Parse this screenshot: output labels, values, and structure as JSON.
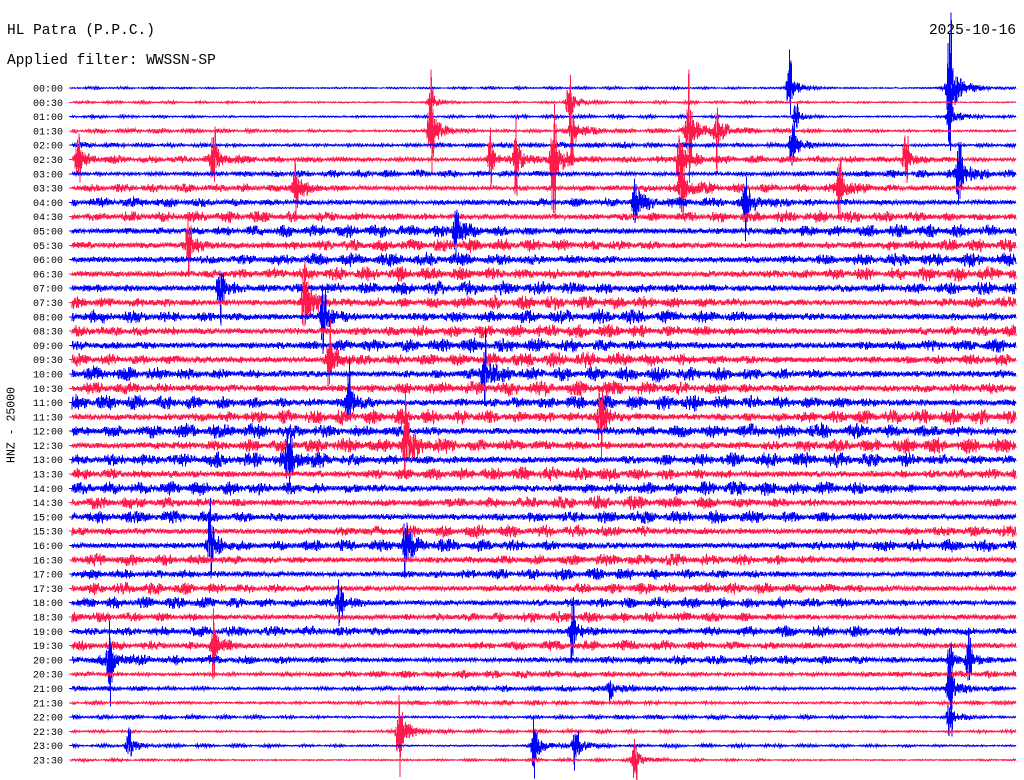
{
  "chart_data": {
    "type": "line",
    "title": "HL Patra (P.P.C.)",
    "subtitle": "Applied filter: WWSSN-SP",
    "date": "2025-10-16",
    "ylabel": "HNZ - 25000",
    "xlim": [
      0,
      30
    ],
    "grid": false,
    "colors": [
      "#0000ff",
      "#ff1a4b"
    ],
    "rows": [
      {
        "label": "00:00",
        "amplitude": 0.12
      },
      {
        "label": "00:30",
        "amplitude": 0.12
      },
      {
        "label": "01:00",
        "amplitude": 0.15
      },
      {
        "label": "01:30",
        "amplitude": 0.2
      },
      {
        "label": "02:00",
        "amplitude": 0.25
      },
      {
        "label": "02:30",
        "amplitude": 0.32
      },
      {
        "label": "03:00",
        "amplitude": 0.32
      },
      {
        "label": "03:30",
        "amplitude": 0.35
      },
      {
        "label": "04:00",
        "amplitude": 0.42
      },
      {
        "label": "04:30",
        "amplitude": 0.48
      },
      {
        "label": "05:00",
        "amplitude": 0.52
      },
      {
        "label": "05:30",
        "amplitude": 0.55
      },
      {
        "label": "06:00",
        "amplitude": 0.55
      },
      {
        "label": "06:30",
        "amplitude": 0.57
      },
      {
        "label": "07:00",
        "amplitude": 0.57
      },
      {
        "label": "07:30",
        "amplitude": 0.57
      },
      {
        "label": "08:00",
        "amplitude": 0.58
      },
      {
        "label": "08:30",
        "amplitude": 0.58
      },
      {
        "label": "09:00",
        "amplitude": 0.58
      },
      {
        "label": "09:30",
        "amplitude": 0.6
      },
      {
        "label": "10:00",
        "amplitude": 0.6
      },
      {
        "label": "10:30",
        "amplitude": 0.62
      },
      {
        "label": "11:00",
        "amplitude": 0.62
      },
      {
        "label": "11:30",
        "amplitude": 0.62
      },
      {
        "label": "12:00",
        "amplitude": 0.62
      },
      {
        "label": "12:30",
        "amplitude": 0.62
      },
      {
        "label": "13:00",
        "amplitude": 0.6
      },
      {
        "label": "13:30",
        "amplitude": 0.58
      },
      {
        "label": "14:00",
        "amplitude": 0.57
      },
      {
        "label": "14:30",
        "amplitude": 0.55
      },
      {
        "label": "15:00",
        "amplitude": 0.53
      },
      {
        "label": "15:30",
        "amplitude": 0.52
      },
      {
        "label": "16:00",
        "amplitude": 0.52
      },
      {
        "label": "16:30",
        "amplitude": 0.5
      },
      {
        "label": "17:00",
        "amplitude": 0.48
      },
      {
        "label": "17:30",
        "amplitude": 0.47
      },
      {
        "label": "18:00",
        "amplitude": 0.46
      },
      {
        "label": "18:30",
        "amplitude": 0.45
      },
      {
        "label": "19:00",
        "amplitude": 0.44
      },
      {
        "label": "19:30",
        "amplitude": 0.42
      },
      {
        "label": "20:00",
        "amplitude": 0.38
      },
      {
        "label": "20:30",
        "amplitude": 0.32
      },
      {
        "label": "21:00",
        "amplitude": 0.27
      },
      {
        "label": "21:30",
        "amplitude": 0.22
      },
      {
        "label": "22:00",
        "amplitude": 0.19
      },
      {
        "label": "22:30",
        "amplitude": 0.16
      },
      {
        "label": "23:00",
        "amplitude": 0.15
      },
      {
        "label": "23:30",
        "amplitude": 0.13
      }
    ],
    "events": [
      [
        "00:00",
        22.8,
        2.3
      ],
      [
        "00:00",
        27.9,
        5.8
      ],
      [
        "00:30",
        15.8,
        1.9
      ],
      [
        "00:30",
        11.4,
        1.2
      ],
      [
        "01:00",
        27.9,
        2.0
      ],
      [
        "01:00",
        23.0,
        1.2
      ],
      [
        "01:30",
        11.4,
        3.8
      ],
      [
        "01:30",
        19.6,
        4.2
      ],
      [
        "01:30",
        20.5,
        2.5
      ],
      [
        "01:30",
        15.9,
        2.8
      ],
      [
        "02:00",
        22.9,
        2.2
      ],
      [
        "02:30",
        15.3,
        4.5
      ],
      [
        "02:30",
        14.1,
        2.6
      ],
      [
        "02:30",
        13.3,
        2.0
      ],
      [
        "02:30",
        4.5,
        2.2
      ],
      [
        "02:30",
        0.2,
        1.8
      ],
      [
        "02:30",
        26.5,
        2.2
      ],
      [
        "02:30",
        19.3,
        2.8
      ],
      [
        "03:00",
        28.2,
        3.0
      ],
      [
        "03:30",
        7.1,
        2.6
      ],
      [
        "03:30",
        24.4,
        2.4
      ],
      [
        "03:30",
        19.4,
        3.0
      ],
      [
        "04:00",
        21.4,
        2.6
      ],
      [
        "04:00",
        17.9,
        1.8
      ],
      [
        "05:00",
        12.2,
        1.8
      ],
      [
        "05:30",
        3.7,
        2.5
      ],
      [
        "07:00",
        4.7,
        2.6
      ],
      [
        "07:30",
        7.4,
        3.8
      ],
      [
        "08:00",
        8.0,
        3.0
      ],
      [
        "09:30",
        8.2,
        3.0
      ],
      [
        "10:00",
        13.1,
        3.0
      ],
      [
        "11:00",
        8.8,
        2.8
      ],
      [
        "11:30",
        16.8,
        3.0
      ],
      [
        "12:30",
        10.6,
        3.0
      ],
      [
        "13:00",
        6.9,
        2.5
      ],
      [
        "16:00",
        10.6,
        2.0
      ],
      [
        "16:00",
        4.4,
        3.0
      ],
      [
        "18:00",
        8.5,
        2.0
      ],
      [
        "19:00",
        15.9,
        2.4
      ],
      [
        "19:30",
        4.5,
        2.6
      ],
      [
        "20:00",
        1.2,
        2.6
      ],
      [
        "20:00",
        27.9,
        1.6
      ],
      [
        "20:00",
        28.5,
        1.6
      ],
      [
        "21:00",
        27.9,
        2.6
      ],
      [
        "21:00",
        17.1,
        1.0
      ],
      [
        "22:00",
        27.9,
        1.8
      ],
      [
        "22:30",
        10.4,
        3.3
      ],
      [
        "23:00",
        14.7,
        2.6
      ],
      [
        "23:00",
        16.0,
        2.0
      ],
      [
        "23:00",
        1.8,
        1.2
      ],
      [
        "23:30",
        17.9,
        1.6
      ]
    ]
  }
}
